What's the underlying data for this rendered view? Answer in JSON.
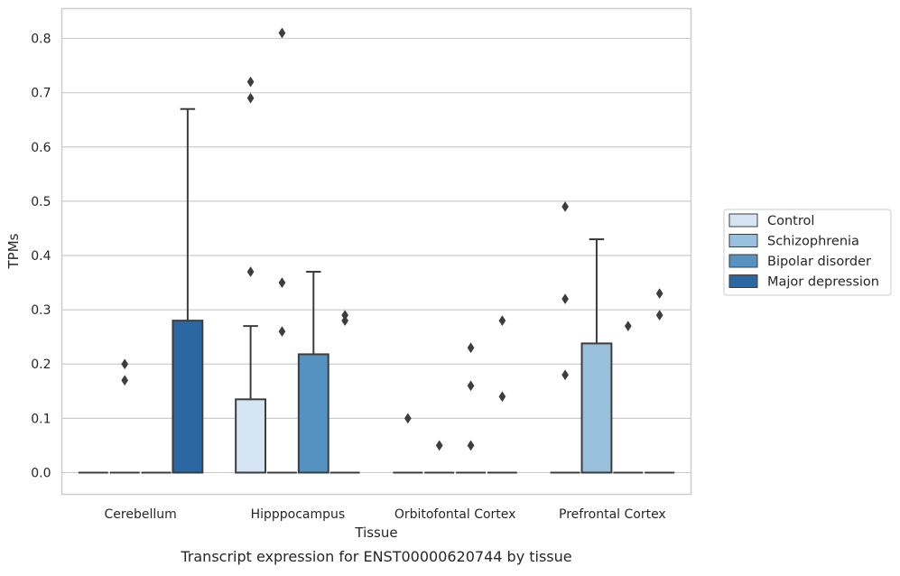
{
  "chart_data": {
    "type": "box",
    "title": "",
    "caption": "Transcript expression for ENST00000620744 by tissue",
    "xlabel": "Tissue",
    "ylabel": "TPMs",
    "ylim": [
      -0.04,
      0.855
    ],
    "yticks": [
      "0.0",
      "0.1",
      "0.2",
      "0.3",
      "0.4",
      "0.5",
      "0.6",
      "0.7",
      "0.8"
    ],
    "ytick_values": [
      0.0,
      0.1,
      0.2,
      0.3,
      0.4,
      0.5,
      0.6,
      0.7,
      0.8
    ],
    "grid": true,
    "legend_position": "right-center",
    "categories": [
      "Cerebellum",
      "Hipppocampus",
      "Orbitofontal Cortex",
      "Prefrontal Cortex"
    ],
    "series": [
      {
        "name": "Control",
        "color": "#d6e5f4",
        "boxes": [
          {
            "category": "Cerebellum",
            "q1": 0,
            "median": 0,
            "q3": 0,
            "whisker_low": 0,
            "whisker_high": 0,
            "outliers": []
          },
          {
            "category": "Hipppocampus",
            "q1": 0,
            "median": 0,
            "q3": 0.135,
            "whisker_low": 0,
            "whisker_high": 0.27,
            "outliers": [
              0.37,
              0.69,
              0.72
            ]
          },
          {
            "category": "Orbitofontal Cortex",
            "q1": 0,
            "median": 0,
            "q3": 0,
            "whisker_low": 0,
            "whisker_high": 0,
            "outliers": [
              0.1
            ]
          },
          {
            "category": "Prefrontal Cortex",
            "q1": 0,
            "median": 0,
            "q3": 0,
            "whisker_low": 0,
            "whisker_high": 0,
            "outliers": [
              0.18,
              0.32,
              0.49
            ]
          }
        ]
      },
      {
        "name": "Schizophrenia",
        "color": "#99c0dc",
        "boxes": [
          {
            "category": "Cerebellum",
            "q1": 0,
            "median": 0,
            "q3": 0,
            "whisker_low": 0,
            "whisker_high": 0,
            "outliers": [
              0.17,
              0.2
            ]
          },
          {
            "category": "Hipppocampus",
            "q1": 0,
            "median": 0,
            "q3": 0,
            "whisker_low": 0,
            "whisker_high": 0,
            "outliers": [
              0.26,
              0.35,
              0.81
            ]
          },
          {
            "category": "Orbitofontal Cortex",
            "q1": 0,
            "median": 0,
            "q3": 0,
            "whisker_low": 0,
            "whisker_high": 0,
            "outliers": [
              0.05
            ]
          },
          {
            "category": "Prefrontal Cortex",
            "q1": 0,
            "median": 0,
            "q3": 0.238,
            "whisker_low": 0,
            "whisker_high": 0.43,
            "outliers": []
          }
        ]
      },
      {
        "name": "Bipolar disorder",
        "color": "#5592c1",
        "boxes": [
          {
            "category": "Cerebellum",
            "q1": 0,
            "median": 0,
            "q3": 0,
            "whisker_low": 0,
            "whisker_high": 0,
            "outliers": []
          },
          {
            "category": "Hipppocampus",
            "q1": 0,
            "median": 0,
            "q3": 0.218,
            "whisker_low": 0,
            "whisker_high": 0.37,
            "outliers": []
          },
          {
            "category": "Orbitofontal Cortex",
            "q1": 0,
            "median": 0,
            "q3": 0,
            "whisker_low": 0,
            "whisker_high": 0,
            "outliers": [
              0.05,
              0.16,
              0.23
            ]
          },
          {
            "category": "Prefrontal Cortex",
            "q1": 0,
            "median": 0,
            "q3": 0,
            "whisker_low": 0,
            "whisker_high": 0,
            "outliers": [
              0.27
            ]
          }
        ]
      },
      {
        "name": "Major depression",
        "color": "#2c67a3",
        "boxes": [
          {
            "category": "Cerebellum",
            "q1": 0,
            "median": 0,
            "q3": 0.28,
            "whisker_low": 0,
            "whisker_high": 0.67,
            "outliers": []
          },
          {
            "category": "Hipppocampus",
            "q1": 0,
            "median": 0,
            "q3": 0,
            "whisker_low": 0,
            "whisker_high": 0,
            "outliers": [
              0.28,
              0.29
            ]
          },
          {
            "category": "Orbitofontal Cortex",
            "q1": 0,
            "median": 0,
            "q3": 0,
            "whisker_low": 0,
            "whisker_high": 0,
            "outliers": [
              0.14,
              0.28
            ]
          },
          {
            "category": "Prefrontal Cortex",
            "q1": 0,
            "median": 0,
            "q3": 0,
            "whisker_low": 0,
            "whisker_high": 0,
            "outliers": [
              0.29,
              0.33
            ]
          }
        ]
      }
    ]
  }
}
